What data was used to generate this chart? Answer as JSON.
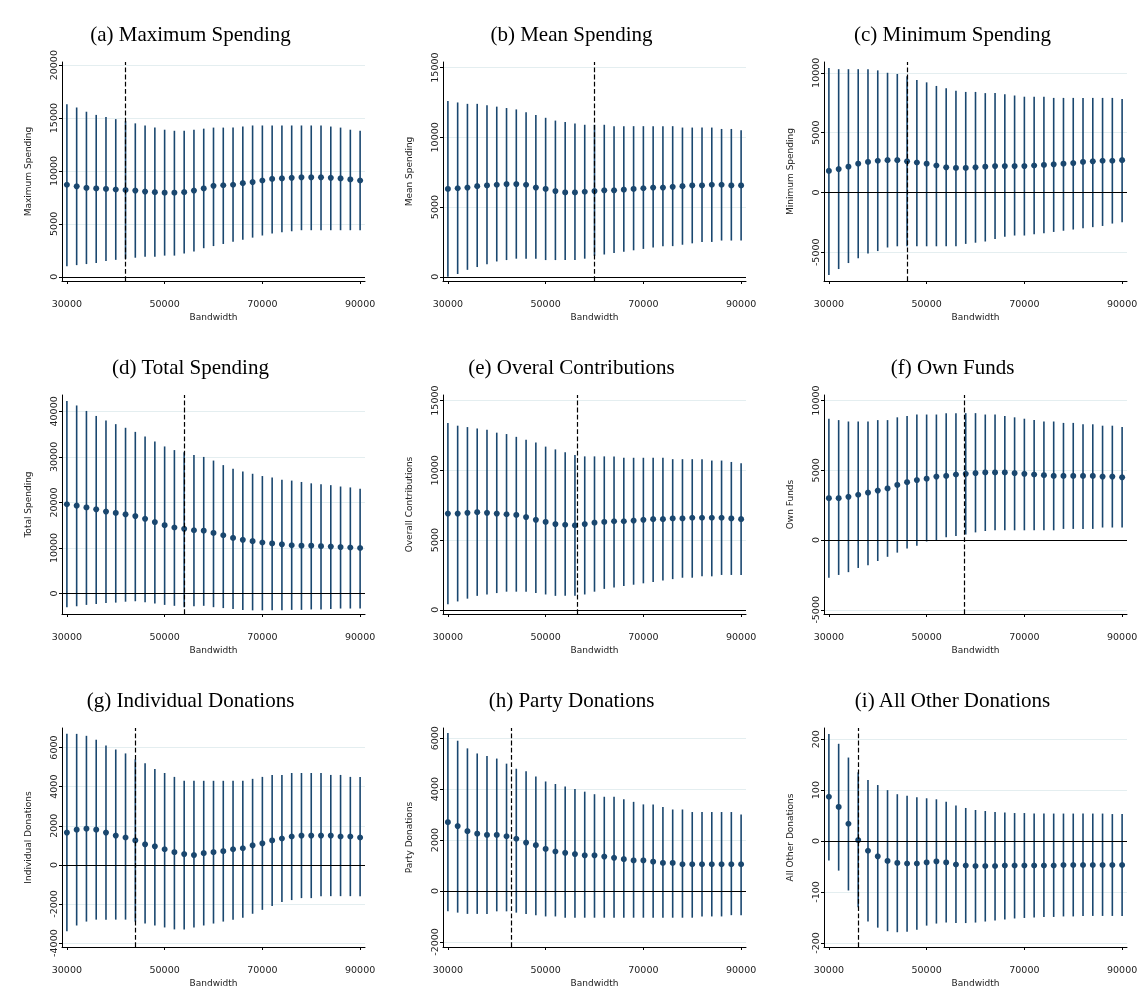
{
  "chart_data": [
    {
      "type": "scatter",
      "title": "(a) Maximum Spending",
      "xlabel": "Bandwidth",
      "ylabel": "Maximum Spending",
      "marker": "circle",
      "grid": "y",
      "color": "#1a476f",
      "x": [
        30000,
        32000,
        34000,
        36000,
        38000,
        40000,
        42000,
        44000,
        46000,
        48000,
        50000,
        52000,
        54000,
        56000,
        58000,
        60000,
        62000,
        64000,
        66000,
        68000,
        70000,
        72000,
        74000,
        76000,
        78000,
        80000,
        82000,
        84000,
        86000,
        88000,
        90000
      ],
      "values": [
        8700,
        8550,
        8400,
        8350,
        8300,
        8250,
        8200,
        8150,
        8050,
        8000,
        7950,
        7950,
        8000,
        8150,
        8350,
        8600,
        8650,
        8700,
        8850,
        8950,
        9100,
        9250,
        9300,
        9350,
        9400,
        9400,
        9400,
        9350,
        9300,
        9200,
        9100
      ],
      "errors": [
        [
          1000,
          16300
        ],
        [
          1100,
          16000
        ],
        [
          1200,
          15600
        ],
        [
          1300,
          15300
        ],
        [
          1500,
          15100
        ],
        [
          1600,
          14900
        ],
        [
          1700,
          14700
        ],
        [
          1800,
          14500
        ],
        [
          1900,
          14300
        ],
        [
          1900,
          14100
        ],
        [
          2000,
          13900
        ],
        [
          2000,
          13800
        ],
        [
          2200,
          13800
        ],
        [
          2400,
          13900
        ],
        [
          2700,
          14000
        ],
        [
          2900,
          14100
        ],
        [
          3100,
          14100
        ],
        [
          3300,
          14100
        ],
        [
          3500,
          14200
        ],
        [
          3700,
          14300
        ],
        [
          3900,
          14300
        ],
        [
          4100,
          14300
        ],
        [
          4200,
          14300
        ],
        [
          4300,
          14300
        ],
        [
          4400,
          14300
        ],
        [
          4400,
          14300
        ],
        [
          4400,
          14300
        ],
        [
          4400,
          14200
        ],
        [
          4400,
          14100
        ],
        [
          4400,
          13900
        ],
        [
          4400,
          13800
        ]
      ],
      "xlim": [
        29000,
        91000
      ],
      "xticks": [
        30000,
        50000,
        70000,
        90000
      ],
      "ylim": [
        -400,
        20300
      ],
      "yticks": [
        0,
        5000,
        10000,
        15000,
        20000
      ],
      "ref_lines": [
        {
          "axis": "x",
          "value": 42000,
          "color": "#000000",
          "line_style": "dashed"
        },
        {
          "axis": "y",
          "value": 0,
          "color": "#000000",
          "line_style": "solid"
        }
      ]
    },
    {
      "type": "scatter",
      "title": "(b) Mean Spending",
      "xlabel": "Bandwidth",
      "ylabel": "Mean Spending",
      "marker": "circle",
      "grid": "y",
      "color": "#1a476f",
      "x": [
        30000,
        32000,
        34000,
        36000,
        38000,
        40000,
        42000,
        44000,
        46000,
        48000,
        50000,
        52000,
        54000,
        56000,
        58000,
        60000,
        62000,
        64000,
        66000,
        68000,
        70000,
        72000,
        74000,
        76000,
        78000,
        80000,
        82000,
        84000,
        86000,
        88000,
        90000
      ],
      "values": [
        6300,
        6350,
        6400,
        6500,
        6550,
        6600,
        6650,
        6650,
        6600,
        6400,
        6300,
        6150,
        6050,
        6050,
        6100,
        6150,
        6200,
        6200,
        6250,
        6300,
        6350,
        6400,
        6400,
        6450,
        6500,
        6550,
        6550,
        6600,
        6600,
        6550,
        6550
      ],
      "errors": [
        [
          0,
          12600
        ],
        [
          200,
          12500
        ],
        [
          500,
          12400
        ],
        [
          700,
          12400
        ],
        [
          900,
          12300
        ],
        [
          1100,
          12200
        ],
        [
          1200,
          12100
        ],
        [
          1300,
          12000
        ],
        [
          1300,
          11800
        ],
        [
          1300,
          11600
        ],
        [
          1200,
          11400
        ],
        [
          1200,
          11200
        ],
        [
          1200,
          11100
        ],
        [
          1200,
          11000
        ],
        [
          1300,
          10900
        ],
        [
          1500,
          10900
        ],
        [
          1600,
          10900
        ],
        [
          1700,
          10800
        ],
        [
          1800,
          10800
        ],
        [
          1900,
          10800
        ],
        [
          2000,
          10800
        ],
        [
          2100,
          10800
        ],
        [
          2200,
          10800
        ],
        [
          2200,
          10800
        ],
        [
          2300,
          10700
        ],
        [
          2400,
          10700
        ],
        [
          2500,
          10700
        ],
        [
          2500,
          10700
        ],
        [
          2600,
          10600
        ],
        [
          2600,
          10600
        ],
        [
          2600,
          10500
        ]
      ],
      "xlim": [
        29000,
        91000
      ],
      "xticks": [
        30000,
        50000,
        70000,
        90000
      ],
      "ylim": [
        -300,
        15400
      ],
      "yticks": [
        0,
        5000,
        10000,
        15000
      ],
      "ref_lines": [
        {
          "axis": "x",
          "value": 60000,
          "color": "#000000",
          "line_style": "dashed"
        },
        {
          "axis": "y",
          "value": 0,
          "color": "#000000",
          "line_style": "solid"
        }
      ]
    },
    {
      "type": "scatter",
      "title": "(c) Minimum Spending",
      "xlabel": "Bandwidth",
      "ylabel": "Minimum Spending",
      "marker": "circle",
      "grid": "y",
      "color": "#1a476f",
      "x": [
        30000,
        32000,
        34000,
        36000,
        38000,
        40000,
        42000,
        44000,
        46000,
        48000,
        50000,
        52000,
        54000,
        56000,
        58000,
        60000,
        62000,
        64000,
        66000,
        68000,
        70000,
        72000,
        74000,
        76000,
        78000,
        80000,
        82000,
        84000,
        86000,
        88000,
        90000
      ],
      "values": [
        1800,
        1950,
        2150,
        2400,
        2550,
        2650,
        2700,
        2700,
        2600,
        2500,
        2400,
        2250,
        2100,
        2050,
        2050,
        2100,
        2150,
        2200,
        2200,
        2200,
        2200,
        2250,
        2300,
        2350,
        2400,
        2450,
        2550,
        2600,
        2650,
        2650,
        2700
      ],
      "errors": [
        [
          -6900,
          10400
        ],
        [
          -6400,
          10300
        ],
        [
          -5900,
          10300
        ],
        [
          -5500,
          10300
        ],
        [
          -5100,
          10300
        ],
        [
          -4900,
          10200
        ],
        [
          -4600,
          10000
        ],
        [
          -4500,
          9900
        ],
        [
          -4500,
          9700
        ],
        [
          -4500,
          9400
        ],
        [
          -4500,
          9200
        ],
        [
          -4500,
          8900
        ],
        [
          -4500,
          8700
        ],
        [
          -4500,
          8500
        ],
        [
          -4300,
          8400
        ],
        [
          -4200,
          8400
        ],
        [
          -4100,
          8300
        ],
        [
          -3900,
          8300
        ],
        [
          -3700,
          8200
        ],
        [
          -3600,
          8100
        ],
        [
          -3600,
          8000
        ],
        [
          -3500,
          8000
        ],
        [
          -3400,
          8000
        ],
        [
          -3300,
          7900
        ],
        [
          -3200,
          7900
        ],
        [
          -3100,
          7900
        ],
        [
          -3000,
          7900
        ],
        [
          -2900,
          7900
        ],
        [
          -2800,
          7900
        ],
        [
          -2600,
          7900
        ],
        [
          -2500,
          7800
        ]
      ],
      "xlim": [
        29000,
        91000
      ],
      "xticks": [
        30000,
        50000,
        70000,
        90000
      ],
      "ylim": [
        -7400,
        10900
      ],
      "yticks": [
        -5000,
        0,
        5000,
        10000
      ],
      "ref_lines": [
        {
          "axis": "x",
          "value": 46000,
          "color": "#000000",
          "line_style": "dashed"
        },
        {
          "axis": "y",
          "value": 0,
          "color": "#000000",
          "line_style": "solid"
        }
      ]
    },
    {
      "type": "scatter",
      "title": "(d) Total Spending",
      "xlabel": "Bandwidth",
      "ylabel": "Total Spending",
      "marker": "circle",
      "grid": "y",
      "color": "#1a476f",
      "x": [
        30000,
        32000,
        34000,
        36000,
        38000,
        40000,
        42000,
        44000,
        46000,
        48000,
        50000,
        52000,
        54000,
        56000,
        58000,
        60000,
        62000,
        64000,
        66000,
        68000,
        70000,
        72000,
        74000,
        76000,
        78000,
        80000,
        82000,
        84000,
        86000,
        88000,
        90000
      ],
      "values": [
        19600,
        19300,
        18900,
        18500,
        18000,
        17700,
        17400,
        17000,
        16400,
        15700,
        15000,
        14500,
        14200,
        13900,
        13800,
        13300,
        12800,
        12200,
        11800,
        11500,
        11200,
        11000,
        10800,
        10600,
        10500,
        10500,
        10400,
        10300,
        10200,
        10100,
        10000
      ],
      "errors": [
        [
          -3000,
          42300
        ],
        [
          -2800,
          41300
        ],
        [
          -2500,
          40100
        ],
        [
          -2300,
          39000
        ],
        [
          -2100,
          38000
        ],
        [
          -2000,
          37200
        ],
        [
          -1800,
          36400
        ],
        [
          -1700,
          35500
        ],
        [
          -1900,
          34500
        ],
        [
          -2200,
          33400
        ],
        [
          -2500,
          32300
        ],
        [
          -2700,
          31500
        ],
        [
          -3000,
          31000
        ],
        [
          -2800,
          30400
        ],
        [
          -2700,
          30000
        ],
        [
          -3000,
          29200
        ],
        [
          -3200,
          28200
        ],
        [
          -3400,
          27400
        ],
        [
          -3600,
          26800
        ],
        [
          -3700,
          26300
        ],
        [
          -3700,
          25800
        ],
        [
          -3700,
          25500
        ],
        [
          -3700,
          25000
        ],
        [
          -3600,
          24800
        ],
        [
          -3600,
          24500
        ],
        [
          -3500,
          24200
        ],
        [
          -3500,
          24000
        ],
        [
          -3400,
          23800
        ],
        [
          -3300,
          23500
        ],
        [
          -3300,
          23300
        ],
        [
          -3300,
          23000
        ]
      ],
      "xlim": [
        29000,
        91000
      ],
      "xticks": [
        30000,
        50000,
        70000,
        90000
      ],
      "ylim": [
        -4500,
        43600
      ],
      "yticks": [
        0,
        10000,
        20000,
        30000,
        40000
      ],
      "ref_lines": [
        {
          "axis": "x",
          "value": 54000,
          "color": "#000000",
          "line_style": "dashed"
        },
        {
          "axis": "y",
          "value": 0,
          "color": "#000000",
          "line_style": "solid"
        }
      ]
    },
    {
      "type": "scatter",
      "title": "(e) Overal Contributions",
      "xlabel": "Bandwidth",
      "ylabel": "Overall Contributions",
      "marker": "circle",
      "grid": "y",
      "color": "#1a476f",
      "x": [
        30000,
        32000,
        34000,
        36000,
        38000,
        40000,
        42000,
        44000,
        46000,
        48000,
        50000,
        52000,
        54000,
        56000,
        58000,
        60000,
        62000,
        64000,
        66000,
        68000,
        70000,
        72000,
        74000,
        76000,
        78000,
        80000,
        82000,
        84000,
        86000,
        88000,
        90000
      ],
      "values": [
        6900,
        6900,
        6950,
        7000,
        6950,
        6900,
        6850,
        6800,
        6650,
        6450,
        6300,
        6150,
        6100,
        6050,
        6150,
        6250,
        6300,
        6350,
        6350,
        6400,
        6450,
        6500,
        6500,
        6550,
        6550,
        6600,
        6600,
        6600,
        6600,
        6550,
        6500
      ],
      "errors": [
        [
          400,
          13400
        ],
        [
          600,
          13200
        ],
        [
          800,
          13100
        ],
        [
          1000,
          13000
        ],
        [
          1100,
          12900
        ],
        [
          1200,
          12700
        ],
        [
          1300,
          12600
        ],
        [
          1300,
          12400
        ],
        [
          1300,
          12200
        ],
        [
          1200,
          12000
        ],
        [
          1100,
          11700
        ],
        [
          1000,
          11500
        ],
        [
          1000,
          11300
        ],
        [
          1000,
          11100
        ],
        [
          1100,
          11000
        ],
        [
          1300,
          11000
        ],
        [
          1500,
          11000
        ],
        [
          1600,
          11000
        ],
        [
          1700,
          10900
        ],
        [
          1800,
          10900
        ],
        [
          1900,
          10900
        ],
        [
          2000,
          10900
        ],
        [
          2100,
          10900
        ],
        [
          2200,
          10800
        ],
        [
          2300,
          10800
        ],
        [
          2300,
          10800
        ],
        [
          2400,
          10800
        ],
        [
          2400,
          10700
        ],
        [
          2500,
          10700
        ],
        [
          2500,
          10600
        ],
        [
          2500,
          10500
        ]
      ],
      "xlim": [
        29000,
        91000
      ],
      "xticks": [
        30000,
        50000,
        70000,
        90000
      ],
      "ylim": [
        -300,
        15400
      ],
      "yticks": [
        0,
        5000,
        10000,
        15000
      ],
      "ref_lines": [
        {
          "axis": "x",
          "value": 56500,
          "color": "#000000",
          "line_style": "dashed"
        },
        {
          "axis": "y",
          "value": 0,
          "color": "#000000",
          "line_style": "solid"
        }
      ]
    },
    {
      "type": "scatter",
      "title": "(f) Own Funds",
      "xlabel": "Bandwidth",
      "ylabel": "Own Funds",
      "marker": "circle",
      "grid": "y",
      "color": "#1a476f",
      "x": [
        30000,
        32000,
        34000,
        36000,
        38000,
        40000,
        42000,
        44000,
        46000,
        48000,
        50000,
        52000,
        54000,
        56000,
        58000,
        60000,
        62000,
        64000,
        66000,
        68000,
        70000,
        72000,
        74000,
        76000,
        78000,
        80000,
        82000,
        84000,
        86000,
        88000,
        90000
      ],
      "values": [
        3000,
        3000,
        3100,
        3250,
        3400,
        3550,
        3700,
        3950,
        4150,
        4300,
        4400,
        4550,
        4600,
        4700,
        4750,
        4800,
        4850,
        4850,
        4850,
        4800,
        4750,
        4700,
        4650,
        4600,
        4600,
        4600,
        4600,
        4600,
        4550,
        4550,
        4500
      ],
      "errors": [
        [
          -2700,
          8700
        ],
        [
          -2500,
          8600
        ],
        [
          -2300,
          8500
        ],
        [
          -2000,
          8500
        ],
        [
          -1800,
          8500
        ],
        [
          -1500,
          8600
        ],
        [
          -1200,
          8600
        ],
        [
          -900,
          8800
        ],
        [
          -600,
          8900
        ],
        [
          -400,
          9000
        ],
        [
          -100,
          9000
        ],
        [
          0,
          9000
        ],
        [
          200,
          9100
        ],
        [
          300,
          9100
        ],
        [
          400,
          9100
        ],
        [
          550,
          9100
        ],
        [
          650,
          9000
        ],
        [
          700,
          9000
        ],
        [
          700,
          8900
        ],
        [
          700,
          8800
        ],
        [
          700,
          8700
        ],
        [
          700,
          8600
        ],
        [
          700,
          8500
        ],
        [
          700,
          8500
        ],
        [
          800,
          8400
        ],
        [
          800,
          8400
        ],
        [
          800,
          8300
        ],
        [
          800,
          8300
        ],
        [
          900,
          8200
        ],
        [
          900,
          8200
        ],
        [
          900,
          8100
        ]
      ],
      "xlim": [
        29000,
        91000
      ],
      "xticks": [
        30000,
        50000,
        70000,
        90000
      ],
      "ylim": [
        -5300,
        10400
      ],
      "yticks": [
        -5000,
        0,
        5000,
        10000
      ],
      "ref_lines": [
        {
          "axis": "x",
          "value": 57800,
          "color": "#000000",
          "line_style": "dashed"
        },
        {
          "axis": "y",
          "value": 0,
          "color": "#000000",
          "line_style": "solid"
        }
      ]
    },
    {
      "type": "scatter",
      "title": "(g) Individual Donations",
      "xlabel": "Bandwidth",
      "ylabel": "Individual Donations",
      "marker": "circle",
      "grid": "y",
      "color": "#1a476f",
      "x": [
        30000,
        32000,
        34000,
        36000,
        38000,
        40000,
        42000,
        44000,
        46000,
        48000,
        50000,
        52000,
        54000,
        56000,
        58000,
        60000,
        62000,
        64000,
        66000,
        68000,
        70000,
        72000,
        74000,
        76000,
        78000,
        80000,
        82000,
        84000,
        86000,
        88000,
        90000
      ],
      "values": [
        1650,
        1800,
        1850,
        1800,
        1650,
        1500,
        1400,
        1250,
        1050,
        950,
        800,
        650,
        550,
        500,
        600,
        650,
        700,
        800,
        850,
        1000,
        1100,
        1250,
        1350,
        1450,
        1500,
        1500,
        1500,
        1500,
        1450,
        1450,
        1400
      ],
      "errors": [
        [
          -3400,
          6700
        ],
        [
          -3100,
          6700
        ],
        [
          -2900,
          6600
        ],
        [
          -2800,
          6400
        ],
        [
          -2800,
          6100
        ],
        [
          -2800,
          5900
        ],
        [
          -2800,
          5700
        ],
        [
          -2900,
          5400
        ],
        [
          -3000,
          5200
        ],
        [
          -3100,
          4900
        ],
        [
          -3200,
          4700
        ],
        [
          -3300,
          4500
        ],
        [
          -3300,
          4300
        ],
        [
          -3200,
          4300
        ],
        [
          -3100,
          4300
        ],
        [
          -3000,
          4300
        ],
        [
          -2900,
          4300
        ],
        [
          -2800,
          4300
        ],
        [
          -2700,
          4300
        ],
        [
          -2500,
          4400
        ],
        [
          -2300,
          4500
        ],
        [
          -2100,
          4600
        ],
        [
          -1900,
          4600
        ],
        [
          -1800,
          4700
        ],
        [
          -1700,
          4700
        ],
        [
          -1700,
          4700
        ],
        [
          -1600,
          4700
        ],
        [
          -1600,
          4600
        ],
        [
          -1600,
          4600
        ],
        [
          -1600,
          4500
        ],
        [
          -1600,
          4500
        ]
      ],
      "xlim": [
        29000,
        91000
      ],
      "xticks": [
        30000,
        50000,
        70000,
        90000
      ],
      "ylim": [
        -4200,
        7000
      ],
      "yticks": [
        -4000,
        -2000,
        0,
        2000,
        4000,
        6000
      ],
      "ref_lines": [
        {
          "axis": "x",
          "value": 44000,
          "color": "#000000",
          "line_style": "dashed"
        },
        {
          "axis": "y",
          "value": 0,
          "color": "#000000",
          "line_style": "solid"
        }
      ]
    },
    {
      "type": "scatter",
      "title": "(h) Party Donations",
      "xlabel": "Bandwidth",
      "ylabel": "Party Donations",
      "marker": "circle",
      "grid": "y",
      "color": "#1a476f",
      "x": [
        30000,
        32000,
        34000,
        36000,
        38000,
        40000,
        42000,
        44000,
        46000,
        48000,
        50000,
        52000,
        54000,
        56000,
        58000,
        60000,
        62000,
        64000,
        66000,
        68000,
        70000,
        72000,
        74000,
        76000,
        78000,
        80000,
        82000,
        84000,
        86000,
        88000,
        90000
      ],
      "values": [
        2700,
        2550,
        2350,
        2250,
        2200,
        2200,
        2150,
        2050,
        1900,
        1800,
        1650,
        1550,
        1500,
        1450,
        1400,
        1400,
        1350,
        1300,
        1250,
        1200,
        1200,
        1150,
        1100,
        1100,
        1050,
        1050,
        1050,
        1050,
        1050,
        1050,
        1050
      ],
      "errors": [
        [
          -800,
          6200
        ],
        [
          -850,
          5900
        ],
        [
          -900,
          5600
        ],
        [
          -900,
          5400
        ],
        [
          -900,
          5300
        ],
        [
          -800,
          5200
        ],
        [
          -800,
          5000
        ],
        [
          -850,
          4800
        ],
        [
          -900,
          4700
        ],
        [
          -950,
          4500
        ],
        [
          -1000,
          4300
        ],
        [
          -1000,
          4200
        ],
        [
          -1050,
          4100
        ],
        [
          -1050,
          4000
        ],
        [
          -1050,
          3900
        ],
        [
          -1050,
          3800
        ],
        [
          -1050,
          3700
        ],
        [
          -1050,
          3700
        ],
        [
          -1050,
          3600
        ],
        [
          -1050,
          3500
        ],
        [
          -1050,
          3400
        ],
        [
          -1050,
          3400
        ],
        [
          -1050,
          3300
        ],
        [
          -1050,
          3200
        ],
        [
          -1050,
          3200
        ],
        [
          -1050,
          3100
        ],
        [
          -1000,
          3100
        ],
        [
          -1000,
          3100
        ],
        [
          -1000,
          3100
        ],
        [
          -950,
          3100
        ],
        [
          -950,
          3000
        ]
      ],
      "xlim": [
        29000,
        91000
      ],
      "xticks": [
        30000,
        50000,
        70000,
        90000
      ],
      "ylim": [
        -2200,
        6400
      ],
      "yticks": [
        -2000,
        0,
        2000,
        4000,
        6000
      ],
      "ref_lines": [
        {
          "axis": "x",
          "value": 43000,
          "color": "#000000",
          "line_style": "dashed"
        },
        {
          "axis": "y",
          "value": 0,
          "color": "#000000",
          "line_style": "solid"
        }
      ]
    },
    {
      "type": "scatter",
      "title": "(i) All Other Donations",
      "xlabel": "Bandwidth",
      "ylabel": "All Other Donations",
      "marker": "circle",
      "grid": "y",
      "color": "#1a476f",
      "x": [
        30000,
        32000,
        34000,
        36000,
        38000,
        40000,
        42000,
        44000,
        46000,
        48000,
        50000,
        52000,
        54000,
        56000,
        58000,
        60000,
        62000,
        64000,
        66000,
        68000,
        70000,
        72000,
        74000,
        76000,
        78000,
        80000,
        82000,
        84000,
        86000,
        88000,
        90000
      ],
      "values": [
        87,
        67,
        34,
        2,
        -19,
        -30,
        -39,
        -43,
        -44,
        -44,
        -42,
        -40,
        -42,
        -46,
        -48,
        -49,
        -49,
        -49,
        -48,
        -48,
        -48,
        -48,
        -48,
        -48,
        -47,
        -47,
        -47,
        -47,
        -47,
        -47,
        -47
      ],
      "errors": [
        [
          -38,
          210
        ],
        [
          -58,
          191
        ],
        [
          -97,
          164
        ],
        [
          -130,
          135
        ],
        [
          -158,
          120
        ],
        [
          -170,
          110
        ],
        [
          -177,
          100
        ],
        [
          -179,
          92
        ],
        [
          -178,
          89
        ],
        [
          -174,
          86
        ],
        [
          -166,
          84
        ],
        [
          -162,
          82
        ],
        [
          -160,
          77
        ],
        [
          -161,
          70
        ],
        [
          -161,
          65
        ],
        [
          -160,
          61
        ],
        [
          -158,
          59
        ],
        [
          -156,
          57
        ],
        [
          -154,
          56
        ],
        [
          -152,
          55
        ],
        [
          -151,
          55
        ],
        [
          -150,
          54
        ],
        [
          -149,
          54
        ],
        [
          -149,
          54
        ],
        [
          -148,
          54
        ],
        [
          -148,
          54
        ],
        [
          -147,
          54
        ],
        [
          -147,
          54
        ],
        [
          -147,
          54
        ],
        [
          -147,
          53
        ],
        [
          -147,
          53
        ]
      ],
      "xlim": [
        29000,
        91000
      ],
      "xticks": [
        30000,
        50000,
        70000,
        90000
      ],
      "ylim": [
        -208,
        222
      ],
      "yticks": [
        -200,
        -100,
        0,
        100,
        200
      ],
      "ref_lines": [
        {
          "axis": "x",
          "value": 36000,
          "color": "#000000",
          "line_style": "dashed"
        },
        {
          "axis": "y",
          "value": 0,
          "color": "#000000",
          "line_style": "solid"
        }
      ]
    }
  ]
}
